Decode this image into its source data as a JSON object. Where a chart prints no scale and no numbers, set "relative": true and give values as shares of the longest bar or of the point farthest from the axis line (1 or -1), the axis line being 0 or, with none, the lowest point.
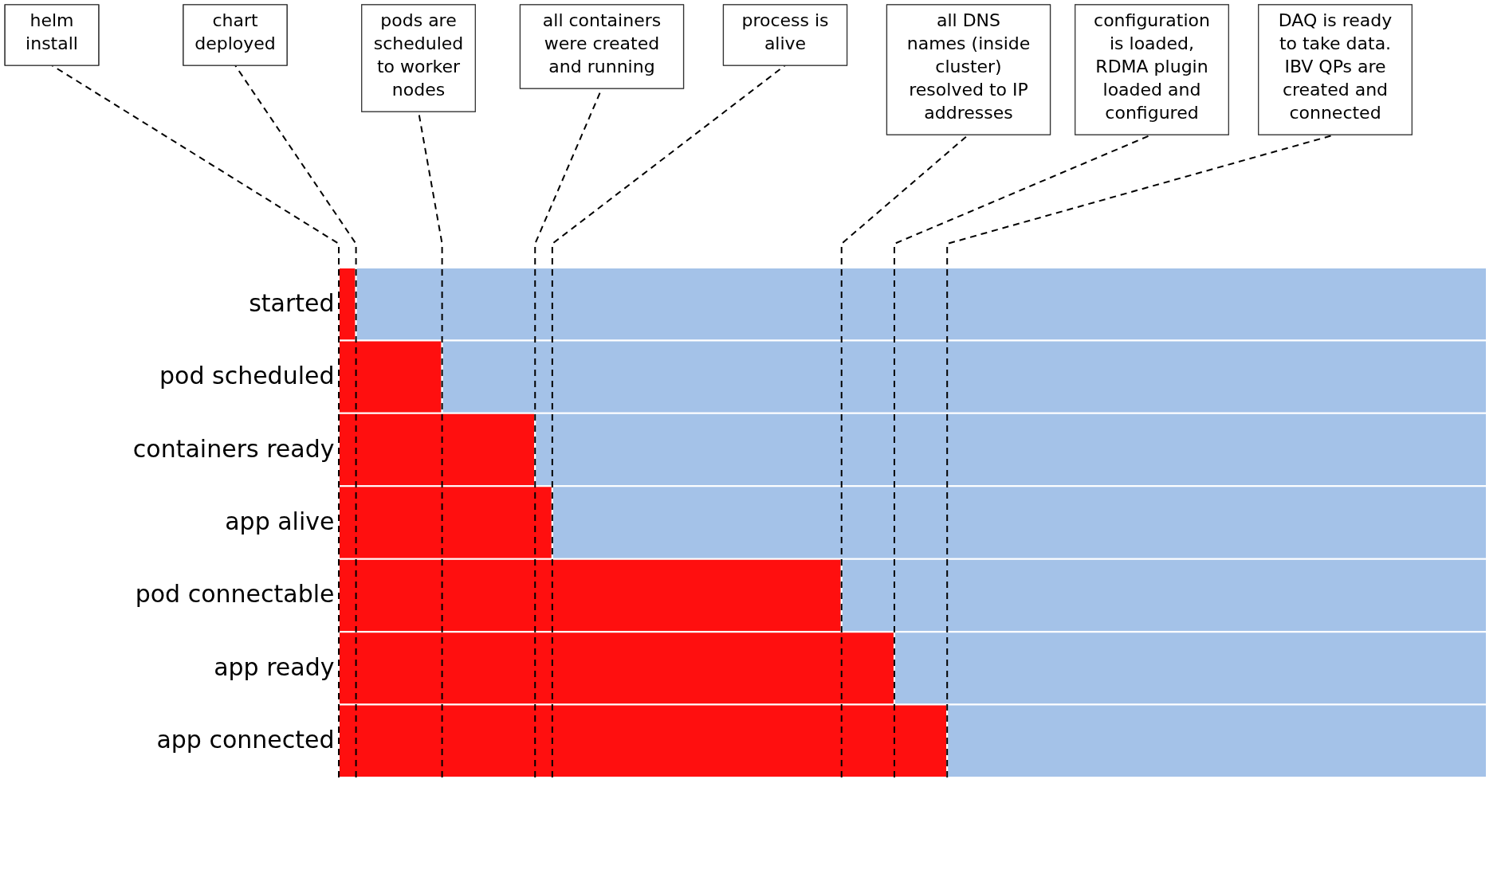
{
  "chart_data": {
    "type": "bar",
    "orientation": "horizontal",
    "stacked": true,
    "relative": true,
    "categories": [
      "started",
      "pod scheduled",
      "containers ready",
      "app alive",
      "pod connectable",
      "app ready",
      "app connected"
    ],
    "series": [
      {
        "color": "#ff0f0f",
        "values": [
          0.015,
          0.09,
          0.171,
          0.186,
          0.438,
          0.484,
          0.53
        ]
      },
      {
        "color": "#a4c2e8",
        "values": [
          0.985,
          0.91,
          0.829,
          0.814,
          0.562,
          0.516,
          0.47
        ]
      }
    ],
    "ref_lines": [
      {
        "axis": "x",
        "value": 0,
        "label": "helm\ninstall",
        "line_style": "dashed",
        "color": "#000000"
      },
      {
        "axis": "x",
        "value": 0.015,
        "label": "chart\ndeployed",
        "line_style": "dashed",
        "color": "#000000"
      },
      {
        "axis": "x",
        "value": 0.09,
        "label": "pods are\nscheduled\nto worker\nnodes",
        "line_style": "dashed",
        "color": "#000000"
      },
      {
        "axis": "x",
        "value": 0.171,
        "label": "all containers\nwere created\nand running",
        "line_style": "dashed",
        "color": "#000000"
      },
      {
        "axis": "x",
        "value": 0.186,
        "label": "process is\nalive",
        "line_style": "dashed",
        "color": "#000000"
      },
      {
        "axis": "x",
        "value": 0.438,
        "label": "all DNS\nnames (inside\ncluster)\nresolved to IP\naddresses",
        "line_style": "dashed",
        "color": "#000000"
      },
      {
        "axis": "x",
        "value": 0.484,
        "label": "configuration\nis loaded,\nRDMA plugin\nloaded and\nconfigured",
        "line_style": "dashed",
        "color": "#000000"
      },
      {
        "axis": "x",
        "value": 0.53,
        "label": "DAQ is ready\nto take data.\nIBV QPs are\ncreated and\nconnected",
        "line_style": "dashed",
        "color": "#000000"
      }
    ]
  }
}
